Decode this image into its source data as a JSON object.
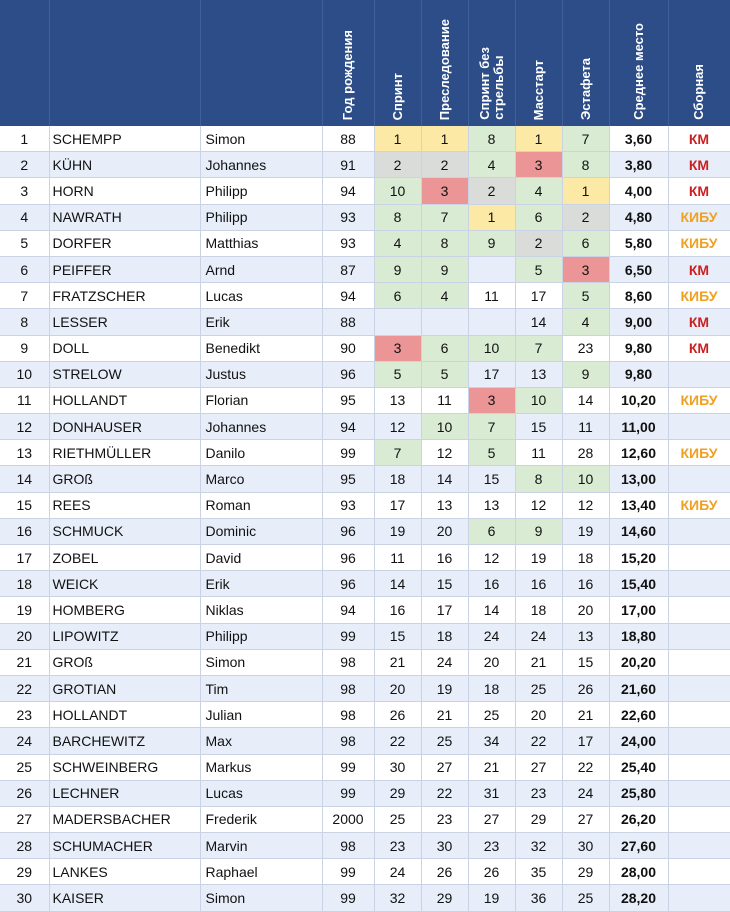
{
  "headers": [
    "",
    "",
    "",
    "Год рождения",
    "Спринт",
    "Преследование",
    "Спринт без\nстрельбы",
    "Масстарт",
    "Эстафета",
    "Среднее место",
    "Сборная"
  ],
  "colors": {
    "header_bg": "#2c4d87",
    "yellow": "#fde9a6",
    "gray": "#d9dcd9",
    "red": "#ec9596",
    "green": "#d9ecd3",
    "km": "#cc1f1f",
    "kibu": "#f0a020"
  },
  "team_colors": {
    "КМ": "#cc1f1f",
    "КИБУ": "#f0a020"
  },
  "rows": [
    {
      "rank": "1",
      "surname": "SCHEMPP",
      "first": "Simon",
      "year": "88",
      "cells": [
        {
          "v": "1",
          "c": "y"
        },
        {
          "v": "1",
          "c": "y"
        },
        {
          "v": "8",
          "c": "gr"
        },
        {
          "v": "1",
          "c": "y"
        },
        {
          "v": "7",
          "c": "gr"
        }
      ],
      "avg": "3,60",
      "team": "КМ"
    },
    {
      "rank": "2",
      "surname": "KÜHN",
      "first": "Johannes",
      "year": "91",
      "cells": [
        {
          "v": "2",
          "c": "g"
        },
        {
          "v": "2",
          "c": "g"
        },
        {
          "v": "4",
          "c": "gr"
        },
        {
          "v": "3",
          "c": "r"
        },
        {
          "v": "8",
          "c": "gr"
        }
      ],
      "avg": "3,80",
      "team": "КМ"
    },
    {
      "rank": "3",
      "surname": "HORN",
      "first": "Philipp",
      "year": "94",
      "cells": [
        {
          "v": "10",
          "c": "gr"
        },
        {
          "v": "3",
          "c": "r"
        },
        {
          "v": "2",
          "c": "g"
        },
        {
          "v": "4",
          "c": "gr"
        },
        {
          "v": "1",
          "c": "y"
        }
      ],
      "avg": "4,00",
      "team": "КМ"
    },
    {
      "rank": "4",
      "surname": "NAWRATH",
      "first": "Philipp",
      "year": "93",
      "cells": [
        {
          "v": "8",
          "c": "gr"
        },
        {
          "v": "7",
          "c": "gr"
        },
        {
          "v": "1",
          "c": "y"
        },
        {
          "v": "6",
          "c": "gr"
        },
        {
          "v": "2",
          "c": "g"
        }
      ],
      "avg": "4,80",
      "team": "КИБУ"
    },
    {
      "rank": "5",
      "surname": "DORFER",
      "first": "Matthias",
      "year": "93",
      "cells": [
        {
          "v": "4",
          "c": "gr"
        },
        {
          "v": "8",
          "c": "gr"
        },
        {
          "v": "9",
          "c": "gr"
        },
        {
          "v": "2",
          "c": "g"
        },
        {
          "v": "6",
          "c": "gr"
        }
      ],
      "avg": "5,80",
      "team": "КИБУ"
    },
    {
      "rank": "6",
      "surname": "PEIFFER",
      "first": "Arnd",
      "year": "87",
      "cells": [
        {
          "v": "9",
          "c": "gr"
        },
        {
          "v": "9",
          "c": "gr"
        },
        {
          "v": "",
          "c": ""
        },
        {
          "v": "5",
          "c": "gr"
        },
        {
          "v": "3",
          "c": "r"
        }
      ],
      "avg": "6,50",
      "team": "КМ"
    },
    {
      "rank": "7",
      "surname": "FRATZSCHER",
      "first": "Lucas",
      "year": "94",
      "cells": [
        {
          "v": "6",
          "c": "gr"
        },
        {
          "v": "4",
          "c": "gr"
        },
        {
          "v": "11",
          "c": ""
        },
        {
          "v": "17",
          "c": ""
        },
        {
          "v": "5",
          "c": "gr"
        }
      ],
      "avg": "8,60",
      "team": "КИБУ"
    },
    {
      "rank": "8",
      "surname": "LESSER",
      "first": "Erik",
      "year": "88",
      "cells": [
        {
          "v": "",
          "c": ""
        },
        {
          "v": "",
          "c": ""
        },
        {
          "v": "",
          "c": ""
        },
        {
          "v": "14",
          "c": ""
        },
        {
          "v": "4",
          "c": "gr"
        }
      ],
      "avg": "9,00",
      "team": "КМ"
    },
    {
      "rank": "9",
      "surname": "DOLL",
      "first": "Benedikt",
      "year": "90",
      "cells": [
        {
          "v": "3",
          "c": "r"
        },
        {
          "v": "6",
          "c": "gr"
        },
        {
          "v": "10",
          "c": "gr"
        },
        {
          "v": "7",
          "c": "gr"
        },
        {
          "v": "23",
          "c": ""
        }
      ],
      "avg": "9,80",
      "team": "КМ"
    },
    {
      "rank": "10",
      "surname": "STRELOW",
      "first": "Justus",
      "year": "96",
      "cells": [
        {
          "v": "5",
          "c": "gr"
        },
        {
          "v": "5",
          "c": "gr"
        },
        {
          "v": "17",
          "c": ""
        },
        {
          "v": "13",
          "c": ""
        },
        {
          "v": "9",
          "c": "gr"
        }
      ],
      "avg": "9,80",
      "team": ""
    },
    {
      "rank": "11",
      "surname": "HOLLANDT",
      "first": "Florian",
      "year": "95",
      "cells": [
        {
          "v": "13",
          "c": ""
        },
        {
          "v": "11",
          "c": ""
        },
        {
          "v": "3",
          "c": "r"
        },
        {
          "v": "10",
          "c": "gr"
        },
        {
          "v": "14",
          "c": ""
        }
      ],
      "avg": "10,20",
      "team": "КИБУ"
    },
    {
      "rank": "12",
      "surname": "DONHAUSER",
      "first": "Johannes",
      "year": "94",
      "cells": [
        {
          "v": "12",
          "c": ""
        },
        {
          "v": "10",
          "c": "gr"
        },
        {
          "v": "7",
          "c": "gr"
        },
        {
          "v": "15",
          "c": ""
        },
        {
          "v": "11",
          "c": ""
        }
      ],
      "avg": "11,00",
      "team": ""
    },
    {
      "rank": "13",
      "surname": "RIETHMÜLLER",
      "first": "Danilo",
      "year": "99",
      "cells": [
        {
          "v": "7",
          "c": "gr"
        },
        {
          "v": "12",
          "c": ""
        },
        {
          "v": "5",
          "c": "gr"
        },
        {
          "v": "11",
          "c": ""
        },
        {
          "v": "28",
          "c": ""
        }
      ],
      "avg": "12,60",
      "team": "КИБУ"
    },
    {
      "rank": "14",
      "surname": "GROß",
      "first": "Marco",
      "year": "95",
      "cells": [
        {
          "v": "18",
          "c": ""
        },
        {
          "v": "14",
          "c": ""
        },
        {
          "v": "15",
          "c": ""
        },
        {
          "v": "8",
          "c": "gr"
        },
        {
          "v": "10",
          "c": "gr"
        }
      ],
      "avg": "13,00",
      "team": ""
    },
    {
      "rank": "15",
      "surname": "REES",
      "first": "Roman",
      "year": "93",
      "cells": [
        {
          "v": "17",
          "c": ""
        },
        {
          "v": "13",
          "c": ""
        },
        {
          "v": "13",
          "c": ""
        },
        {
          "v": "12",
          "c": ""
        },
        {
          "v": "12",
          "c": ""
        }
      ],
      "avg": "13,40",
      "team": "КИБУ"
    },
    {
      "rank": "16",
      "surname": "SCHMUCK",
      "first": "Dominic",
      "year": "96",
      "cells": [
        {
          "v": "19",
          "c": ""
        },
        {
          "v": "20",
          "c": ""
        },
        {
          "v": "6",
          "c": "gr"
        },
        {
          "v": "9",
          "c": "gr"
        },
        {
          "v": "19",
          "c": ""
        }
      ],
      "avg": "14,60",
      "team": ""
    },
    {
      "rank": "17",
      "surname": "ZOBEL",
      "first": "David",
      "year": "96",
      "cells": [
        {
          "v": "11",
          "c": ""
        },
        {
          "v": "16",
          "c": ""
        },
        {
          "v": "12",
          "c": ""
        },
        {
          "v": "19",
          "c": ""
        },
        {
          "v": "18",
          "c": ""
        }
      ],
      "avg": "15,20",
      "team": ""
    },
    {
      "rank": "18",
      "surname": "WEICK",
      "first": "Erik",
      "year": "96",
      "cells": [
        {
          "v": "14",
          "c": ""
        },
        {
          "v": "15",
          "c": ""
        },
        {
          "v": "16",
          "c": ""
        },
        {
          "v": "16",
          "c": ""
        },
        {
          "v": "16",
          "c": ""
        }
      ],
      "avg": "15,40",
      "team": ""
    },
    {
      "rank": "19",
      "surname": "HOMBERG",
      "first": "Niklas",
      "year": "94",
      "cells": [
        {
          "v": "16",
          "c": ""
        },
        {
          "v": "17",
          "c": ""
        },
        {
          "v": "14",
          "c": ""
        },
        {
          "v": "18",
          "c": ""
        },
        {
          "v": "20",
          "c": ""
        }
      ],
      "avg": "17,00",
      "team": ""
    },
    {
      "rank": "20",
      "surname": "LIPOWITZ",
      "first": "Philipp",
      "year": "99",
      "cells": [
        {
          "v": "15",
          "c": ""
        },
        {
          "v": "18",
          "c": ""
        },
        {
          "v": "24",
          "c": ""
        },
        {
          "v": "24",
          "c": ""
        },
        {
          "v": "13",
          "c": ""
        }
      ],
      "avg": "18,80",
      "team": ""
    },
    {
      "rank": "21",
      "surname": "GROß",
      "first": "Simon",
      "year": "98",
      "cells": [
        {
          "v": "21",
          "c": ""
        },
        {
          "v": "24",
          "c": ""
        },
        {
          "v": "20",
          "c": ""
        },
        {
          "v": "21",
          "c": ""
        },
        {
          "v": "15",
          "c": ""
        }
      ],
      "avg": "20,20",
      "team": ""
    },
    {
      "rank": "22",
      "surname": "GROTIAN",
      "first": "Tim",
      "year": "98",
      "cells": [
        {
          "v": "20",
          "c": ""
        },
        {
          "v": "19",
          "c": ""
        },
        {
          "v": "18",
          "c": ""
        },
        {
          "v": "25",
          "c": ""
        },
        {
          "v": "26",
          "c": ""
        }
      ],
      "avg": "21,60",
      "team": ""
    },
    {
      "rank": "23",
      "surname": "HOLLANDT",
      "first": "Julian",
      "year": "98",
      "cells": [
        {
          "v": "26",
          "c": ""
        },
        {
          "v": "21",
          "c": ""
        },
        {
          "v": "25",
          "c": ""
        },
        {
          "v": "20",
          "c": ""
        },
        {
          "v": "21",
          "c": ""
        }
      ],
      "avg": "22,60",
      "team": ""
    },
    {
      "rank": "24",
      "surname": "BARCHEWITZ",
      "first": "Max",
      "year": "98",
      "cells": [
        {
          "v": "22",
          "c": ""
        },
        {
          "v": "25",
          "c": ""
        },
        {
          "v": "34",
          "c": ""
        },
        {
          "v": "22",
          "c": ""
        },
        {
          "v": "17",
          "c": ""
        }
      ],
      "avg": "24,00",
      "team": ""
    },
    {
      "rank": "25",
      "surname": "SCHWEINBERG",
      "first": "Markus",
      "year": "99",
      "cells": [
        {
          "v": "30",
          "c": ""
        },
        {
          "v": "27",
          "c": ""
        },
        {
          "v": "21",
          "c": ""
        },
        {
          "v": "27",
          "c": ""
        },
        {
          "v": "22",
          "c": ""
        }
      ],
      "avg": "25,40",
      "team": ""
    },
    {
      "rank": "26",
      "surname": "LECHNER",
      "first": "Lucas",
      "year": "99",
      "cells": [
        {
          "v": "29",
          "c": ""
        },
        {
          "v": "22",
          "c": ""
        },
        {
          "v": "31",
          "c": ""
        },
        {
          "v": "23",
          "c": ""
        },
        {
          "v": "24",
          "c": ""
        }
      ],
      "avg": "25,80",
      "team": ""
    },
    {
      "rank": "27",
      "surname": "MADERSBACHER",
      "first": "Frederik",
      "year": "2000",
      "cells": [
        {
          "v": "25",
          "c": ""
        },
        {
          "v": "23",
          "c": ""
        },
        {
          "v": "27",
          "c": ""
        },
        {
          "v": "29",
          "c": ""
        },
        {
          "v": "27",
          "c": ""
        }
      ],
      "avg": "26,20",
      "team": ""
    },
    {
      "rank": "28",
      "surname": "SCHUMACHER",
      "first": "Marvin",
      "year": "98",
      "cells": [
        {
          "v": "23",
          "c": ""
        },
        {
          "v": "30",
          "c": ""
        },
        {
          "v": "23",
          "c": ""
        },
        {
          "v": "32",
          "c": ""
        },
        {
          "v": "30",
          "c": ""
        }
      ],
      "avg": "27,60",
      "team": ""
    },
    {
      "rank": "29",
      "surname": "LANKES",
      "first": "Raphael",
      "year": "99",
      "cells": [
        {
          "v": "24",
          "c": ""
        },
        {
          "v": "26",
          "c": ""
        },
        {
          "v": "26",
          "c": ""
        },
        {
          "v": "35",
          "c": ""
        },
        {
          "v": "29",
          "c": ""
        }
      ],
      "avg": "28,00",
      "team": ""
    },
    {
      "rank": "30",
      "surname": "KAISER",
      "first": "Simon",
      "year": "99",
      "cells": [
        {
          "v": "32",
          "c": ""
        },
        {
          "v": "29",
          "c": ""
        },
        {
          "v": "19",
          "c": ""
        },
        {
          "v": "36",
          "c": ""
        },
        {
          "v": "25",
          "c": ""
        }
      ],
      "avg": "28,20",
      "team": ""
    }
  ]
}
